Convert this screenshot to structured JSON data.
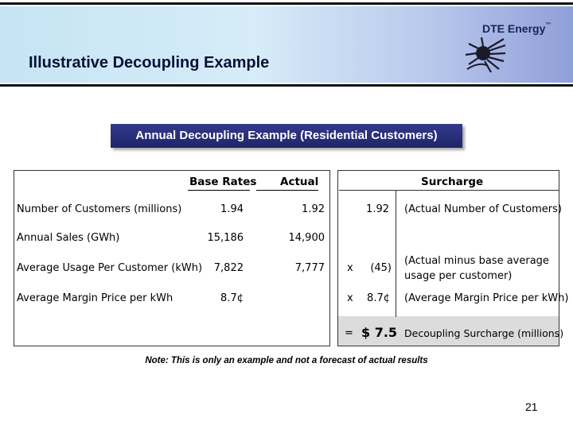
{
  "header": {
    "title": "Illustrative Decoupling Example",
    "logo_text": "DTE Energy",
    "logo_mark": "™"
  },
  "banner": {
    "text": "Annual Decoupling Example (Residential Customers)"
  },
  "table": {
    "headers": {
      "base": "Base Rates",
      "actual": "Actual",
      "surcharge": "Surcharge"
    },
    "rows": [
      {
        "label": "Number of Customers (millions)",
        "base": "1.94",
        "actual": "1.92",
        "op": "",
        "value": "1.92",
        "note": "(Actual Number of Customers)"
      },
      {
        "label": "Annual Sales (GWh)",
        "base": "15,186",
        "actual": "14,900",
        "op": "",
        "value": "",
        "note": ""
      },
      {
        "label": "Average Usage Per Customer (kWh)",
        "base": "7,822",
        "actual": "7,777",
        "op": "x",
        "value": "(45)",
        "note": "(Actual minus base average",
        "note2": "usage per customer)"
      },
      {
        "label": "Average Margin Price per kWh",
        "base": "8.7¢",
        "actual": "",
        "op": "x",
        "value": "8.7¢",
        "note": "(Average Margin Price per kWh)"
      }
    ],
    "total": {
      "op": "=",
      "value": "$ 7.5",
      "note": "Decoupling Surcharge (millions)"
    }
  },
  "note": "Note: This is only an example and not a forecast of actual results",
  "page_number": "21"
}
